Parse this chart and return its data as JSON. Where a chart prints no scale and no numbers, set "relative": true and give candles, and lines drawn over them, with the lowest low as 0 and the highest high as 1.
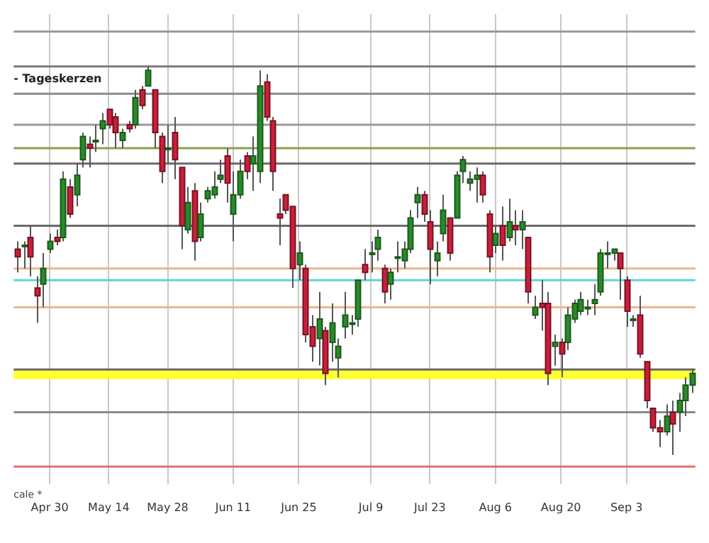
{
  "chart_data": {
    "type": "candlestick",
    "relative": true,
    "grid": "x",
    "legend": false,
    "annotations": [
      "- Tageskerzen",
      "cale *"
    ],
    "categories": [
      null,
      null,
      null,
      null,
      null,
      "Apr 30",
      null,
      null,
      null,
      null,
      null,
      null,
      null,
      null,
      "May 14",
      null,
      null,
      null,
      null,
      null,
      null,
      null,
      null,
      "May 28",
      null,
      null,
      null,
      null,
      null,
      null,
      null,
      null,
      null,
      "Jun 11",
      null,
      null,
      null,
      null,
      null,
      null,
      null,
      null,
      null,
      "Jun 25",
      null,
      null,
      null,
      null,
      null,
      null,
      null,
      null,
      null,
      null,
      "Jul 9",
      null,
      null,
      null,
      null,
      null,
      null,
      null,
      null,
      "Jul 23",
      null,
      null,
      null,
      null,
      null,
      null,
      null,
      null,
      null,
      "Aug 6",
      null,
      null,
      null,
      null,
      null,
      null,
      null,
      null,
      null,
      "Aug 20",
      null,
      null,
      null,
      null,
      null,
      null,
      null,
      null,
      null,
      "Sep 3",
      null,
      null,
      null,
      null,
      null,
      null,
      null,
      null,
      null,
      null
    ],
    "ohlc": [
      [
        0.53,
        0.55,
        0.47,
        0.51
      ],
      [
        0.54,
        0.55,
        0.48,
        0.54
      ],
      [
        0.56,
        0.59,
        0.46,
        0.51
      ],
      [
        0.43,
        0.46,
        0.34,
        0.41
      ],
      [
        0.44,
        0.52,
        0.38,
        0.48
      ],
      [
        0.53,
        0.57,
        0.52,
        0.55
      ],
      [
        0.56,
        0.58,
        0.54,
        0.55
      ],
      [
        0.56,
        0.73,
        0.55,
        0.71
      ],
      [
        0.69,
        0.71,
        0.61,
        0.62
      ],
      [
        0.67,
        0.75,
        0.64,
        0.72
      ],
      [
        0.76,
        0.83,
        0.74,
        0.82
      ],
      [
        0.8,
        0.82,
        0.74,
        0.79
      ],
      [
        0.81,
        0.85,
        0.78,
        0.81
      ],
      [
        0.84,
        0.88,
        0.8,
        0.86
      ],
      [
        0.89,
        0.89,
        0.84,
        0.85
      ],
      [
        0.87,
        0.88,
        0.79,
        0.83
      ],
      [
        0.81,
        0.84,
        0.79,
        0.83
      ],
      [
        0.85,
        0.86,
        0.83,
        0.84
      ],
      [
        0.85,
        0.94,
        0.84,
        0.92
      ],
      [
        0.94,
        0.95,
        0.89,
        0.9
      ],
      [
        0.95,
        1,
        0.95,
        0.99
      ],
      [
        0.94,
        0.94,
        0.79,
        0.83
      ],
      [
        0.82,
        0.83,
        0.7,
        0.73
      ],
      [
        0.79,
        0.85,
        0.75,
        0.79
      ],
      [
        0.83,
        0.87,
        0.71,
        0.76
      ],
      [
        0.74,
        0.74,
        0.53,
        0.59
      ],
      [
        0.58,
        0.69,
        0.57,
        0.65
      ],
      [
        0.68,
        0.7,
        0.5,
        0.55
      ],
      [
        0.56,
        0.65,
        0.55,
        0.62
      ],
      [
        0.66,
        0.69,
        0.65,
        0.68
      ],
      [
        0.67,
        0.73,
        0.66,
        0.69
      ],
      [
        0.71,
        0.76,
        0.7,
        0.72
      ],
      [
        0.77,
        0.79,
        0.65,
        0.7
      ],
      [
        0.62,
        0.73,
        0.55,
        0.67
      ],
      [
        0.67,
        0.76,
        0.66,
        0.73
      ],
      [
        0.77,
        0.78,
        0.71,
        0.73
      ],
      [
        0.75,
        0.82,
        0.68,
        0.77
      ],
      [
        0.73,
        0.99,
        0.7,
        0.95
      ],
      [
        0.96,
        0.98,
        0.86,
        0.87
      ],
      [
        0.86,
        0.87,
        0.68,
        0.73
      ],
      [
        0.62,
        0.66,
        0.54,
        0.61
      ],
      [
        0.67,
        0.67,
        0.62,
        0.63
      ],
      [
        0.64,
        0.64,
        0.43,
        0.48
      ],
      [
        0.49,
        0.55,
        0.45,
        0.52
      ],
      [
        0.48,
        0.49,
        0.29,
        0.31
      ],
      [
        0.33,
        0.36,
        0.24,
        0.28
      ],
      [
        0.3,
        0.42,
        0.23,
        0.35
      ],
      [
        0.32,
        0.33,
        0.18,
        0.21
      ],
      [
        0.29,
        0.39,
        0.24,
        0.34
      ],
      [
        0.25,
        0.3,
        0.2,
        0.28
      ],
      [
        0.33,
        0.42,
        0.3,
        0.36
      ],
      [
        0.34,
        0.36,
        0.31,
        0.34
      ],
      [
        0.35,
        0.45,
        0.33,
        0.45
      ],
      [
        0.49,
        0.53,
        0.45,
        0.47
      ],
      [
        0.52,
        0.55,
        0.47,
        0.52
      ],
      [
        0.53,
        0.58,
        0.5,
        0.56
      ],
      [
        0.48,
        0.49,
        0.39,
        0.42
      ],
      [
        0.44,
        0.48,
        0.4,
        0.47
      ],
      [
        0.51,
        0.55,
        0.47,
        0.51
      ],
      [
        0.5,
        0.55,
        0.48,
        0.53
      ],
      [
        0.53,
        0.63,
        0.52,
        0.61
      ],
      [
        0.65,
        0.69,
        0.61,
        0.67
      ],
      [
        0.67,
        0.68,
        0.6,
        0.62
      ],
      [
        0.6,
        0.63,
        0.44,
        0.53
      ],
      [
        0.5,
        0.55,
        0.46,
        0.52
      ],
      [
        0.57,
        0.67,
        0.55,
        0.63
      ],
      [
        0.61,
        0.61,
        0.5,
        0.52
      ],
      [
        0.61,
        0.73,
        0.61,
        0.72
      ],
      [
        0.73,
        0.77,
        0.7,
        0.76
      ],
      [
        0.7,
        0.73,
        0.68,
        0.71
      ],
      [
        0.71,
        0.74,
        0.65,
        0.72
      ],
      [
        0.72,
        0.73,
        0.65,
        0.67
      ],
      [
        0.62,
        0.63,
        0.47,
        0.51
      ],
      [
        0.54,
        0.59,
        0.52,
        0.57
      ],
      [
        0.59,
        0.64,
        0.5,
        0.54
      ],
      [
        0.56,
        0.66,
        0.55,
        0.6
      ],
      [
        0.59,
        0.63,
        0.54,
        0.58
      ],
      [
        0.58,
        0.63,
        0.53,
        0.6
      ],
      [
        0.56,
        0.56,
        0.39,
        0.42
      ],
      [
        0.36,
        0.41,
        0.35,
        0.38
      ],
      [
        0.39,
        0.45,
        0.32,
        0.38
      ],
      [
        0.39,
        0.42,
        0.18,
        0.21
      ],
      [
        0.28,
        0.31,
        0.23,
        0.29
      ],
      [
        0.29,
        0.3,
        0.2,
        0.26
      ],
      [
        0.29,
        0.38,
        0.27,
        0.36
      ],
      [
        0.35,
        0.4,
        0.34,
        0.39
      ],
      [
        0.37,
        0.42,
        0.36,
        0.4
      ],
      [
        0.38,
        0.4,
        0.36,
        0.38
      ],
      [
        0.39,
        0.44,
        0.36,
        0.4
      ],
      [
        0.42,
        0.53,
        0.41,
        0.52
      ],
      [
        0.52,
        0.55,
        0.48,
        0.52
      ],
      [
        0.52,
        0.53,
        0.5,
        0.53
      ],
      [
        0.52,
        0.52,
        0.4,
        0.48
      ],
      [
        0.45,
        0.46,
        0.33,
        0.37
      ],
      [
        0.35,
        0.36,
        0.33,
        0.35
      ],
      [
        0.36,
        0.41,
        0.25,
        0.26
      ],
      [
        0.24,
        0.24,
        0.12,
        0.14
      ],
      [
        0.12,
        0.12,
        0.06,
        0.07
      ],
      [
        0.07,
        0.09,
        0.02,
        0.06
      ],
      [
        0.06,
        0.13,
        0.05,
        0.1
      ],
      [
        0.11,
        0.14,
        0,
        0.08
      ],
      [
        0.11,
        0.16,
        0.06,
        0.14
      ],
      [
        0.14,
        0.2,
        0.1,
        0.18
      ],
      [
        0.18,
        0.22,
        0.16,
        0.21
      ]
    ],
    "ref_lines": [
      {
        "axis": "y",
        "value": 1.09,
        "color": "#9a9a9a"
      },
      {
        "axis": "y",
        "value": 1.0,
        "color": "#7a7a7a"
      },
      {
        "axis": "y",
        "value": 0.93,
        "color": "#8a8a8a"
      },
      {
        "axis": "y",
        "value": 0.85,
        "color": "#9a9a9a"
      },
      {
        "axis": "y",
        "value": 0.79,
        "color": "#8ca050"
      },
      {
        "axis": "y",
        "value": 0.75,
        "color": "#6a6a6a"
      },
      {
        "axis": "y",
        "value": 0.59,
        "color": "#6a6a6a"
      },
      {
        "axis": "y",
        "value": 0.48,
        "color": "#f0b48c"
      },
      {
        "axis": "y",
        "value": 0.45,
        "color": "#5ed6d6"
      },
      {
        "axis": "y",
        "value": 0.38,
        "color": "#f0b48c"
      },
      {
        "axis": "y",
        "value": 0.22,
        "color": "#6a6a6a"
      },
      {
        "axis": "y",
        "value": 0.11,
        "color": "#8a8a8a"
      },
      {
        "axis": "y",
        "value": -0.03,
        "color": "#e07070"
      }
    ],
    "bands": [
      {
        "axis": "y",
        "from": 0.195,
        "to": 0.222,
        "color": "#ffff33"
      }
    ]
  }
}
